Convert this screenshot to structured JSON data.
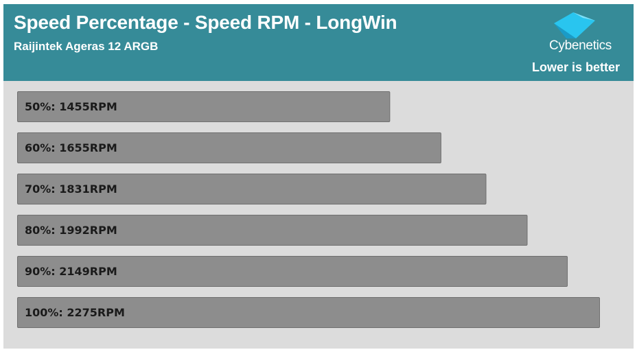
{
  "header": {
    "title": "Speed Percentage - Speed RPM - LongWin",
    "subtitle": "Raijintek Ageras 12 ARGB",
    "brand": "Cybenetics",
    "note": "Lower is better"
  },
  "colors": {
    "header_bg": "#368b98",
    "plot_bg": "#dcdcdc",
    "bar_fill": "#8d8d8d",
    "logo_accent": "#29c5ef"
  },
  "icons": {
    "logo": "cybenetics-logo-icon"
  },
  "chart_data": {
    "type": "bar",
    "orientation": "horizontal",
    "categories": [
      "50%",
      "60%",
      "70%",
      "80%",
      "90%",
      "100%"
    ],
    "values": [
      1455,
      1655,
      1831,
      1992,
      2149,
      2275
    ],
    "labels": [
      "50%: 1455RPM",
      "60%: 1655RPM",
      "70%: 1831RPM",
      "80%: 1992RPM",
      "90%: 2149RPM",
      "100%: 2275RPM"
    ],
    "unit": "RPM",
    "xlim": [
      0,
      2275
    ],
    "grid": false,
    "legend": false
  }
}
